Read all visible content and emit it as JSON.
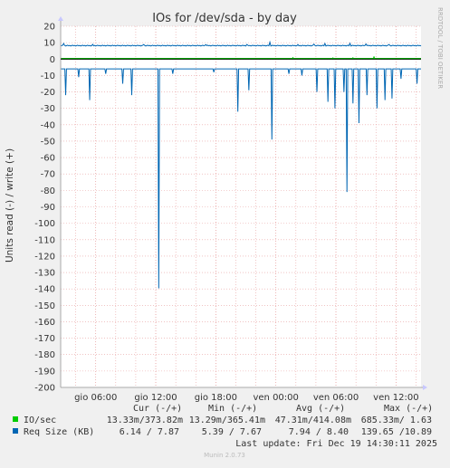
{
  "chart_data": {
    "type": "line",
    "title": "IOs for /dev/sda - by day",
    "ylabel": "Units read (-) / write (+)",
    "side_label": "RRDTOOL / TOBI OETIKER",
    "ylim": [
      -200,
      20
    ],
    "yticks": [
      20,
      10,
      0,
      -10,
      -20,
      -30,
      -40,
      -50,
      -60,
      -70,
      -80,
      -90,
      -100,
      -110,
      -120,
      -130,
      -140,
      -150,
      -160,
      -170,
      -180,
      -190,
      -200
    ],
    "x_range": [
      "2025-12-18 02:30",
      "2025-12-19 14:30"
    ],
    "xticks": [
      {
        "label": "gio 06:00",
        "t": 3.5
      },
      {
        "label": "gio 12:00",
        "t": 9.5
      },
      {
        "label": "gio 18:00",
        "t": 15.5
      },
      {
        "label": "ven 00:00",
        "t": 21.5
      },
      {
        "label": "ven 06:00",
        "t": 27.5
      },
      {
        "label": "ven 12:00",
        "t": 33.5
      }
    ],
    "x_span_hours": 36,
    "grid": true,
    "colors": {
      "io": "#00cc00",
      "req": "#0066b3",
      "grid_minor": "#ff9999",
      "background": "#ffffff"
    },
    "series": [
      {
        "name": "IO/sec",
        "color": "#00cc00",
        "note_baseline": {
          "read": -0.047,
          "write": 0.41
        },
        "spikes_write": [
          {
            "t": 23.2,
            "y": 0.9
          },
          {
            "t": 27.2,
            "y": 0.7
          },
          {
            "t": 29.2,
            "y": 0.8
          },
          {
            "t": 31.3,
            "y": 1.63
          }
        ]
      },
      {
        "name": "Req Size (KB)",
        "color": "#0066b3",
        "baseline_read": -6,
        "baseline_write": 8.2,
        "read_spikes": [
          {
            "t": 0.5,
            "y": -22
          },
          {
            "t": 1.8,
            "y": -11
          },
          {
            "t": 2.9,
            "y": -25
          },
          {
            "t": 4.5,
            "y": -9
          },
          {
            "t": 6.2,
            "y": -15
          },
          {
            "t": 7.1,
            "y": -22
          },
          {
            "t": 9.8,
            "y": -139.65
          },
          {
            "t": 11.2,
            "y": -9
          },
          {
            "t": 15.3,
            "y": -8
          },
          {
            "t": 17.7,
            "y": -32
          },
          {
            "t": 18.8,
            "y": -19
          },
          {
            "t": 21.1,
            "y": -49
          },
          {
            "t": 22.8,
            "y": -9
          },
          {
            "t": 24.1,
            "y": -10
          },
          {
            "t": 25.6,
            "y": -20
          },
          {
            "t": 26.7,
            "y": -26
          },
          {
            "t": 27.4,
            "y": -30
          },
          {
            "t": 28.3,
            "y": -20
          },
          {
            "t": 28.6,
            "y": -81
          },
          {
            "t": 29.2,
            "y": -27
          },
          {
            "t": 29.8,
            "y": -39
          },
          {
            "t": 30.6,
            "y": -22
          },
          {
            "t": 31.6,
            "y": -30
          },
          {
            "t": 32.4,
            "y": -25
          },
          {
            "t": 33.1,
            "y": -24
          },
          {
            "t": 34.0,
            "y": -12
          },
          {
            "t": 35.6,
            "y": -15
          }
        ],
        "write_noise": [
          {
            "t": 0.3,
            "y": 9.5
          },
          {
            "t": 3.2,
            "y": 9
          },
          {
            "t": 8.3,
            "y": 8.9
          },
          {
            "t": 14.5,
            "y": 8.8
          },
          {
            "t": 18.6,
            "y": 8.9
          },
          {
            "t": 20.9,
            "y": 10.3
          },
          {
            "t": 23.7,
            "y": 8.9
          },
          {
            "t": 25.3,
            "y": 9.1
          },
          {
            "t": 26.4,
            "y": 9.5
          },
          {
            "t": 28.9,
            "y": 9.6
          },
          {
            "t": 30.5,
            "y": 9.2
          },
          {
            "t": 32.8,
            "y": 8.9
          }
        ]
      }
    ]
  },
  "legend": {
    "headers": [
      "Cur (-/+)",
      "Min (-/+)",
      "Avg (-/+)",
      "Max (-/+)"
    ],
    "rows": [
      {
        "name": "IO/sec",
        "color": "#00cc00",
        "cur": "13.33m/373.82m",
        "min": "13.29m/365.41m",
        "avg": "47.31m/414.08m",
        "max": "685.33m/ 1.63"
      },
      {
        "name": "Req Size (KB)",
        "color": "#0066b3",
        "cur": "6.14 / 7.87",
        "min": "5.39 / 7.67",
        "avg": "7.94 / 8.40",
        "max": "139.65 /10.89"
      }
    ],
    "last_update": "Last update: Fri Dec 19 14:30:11 2025",
    "footer": "Munin 2.0.73"
  }
}
